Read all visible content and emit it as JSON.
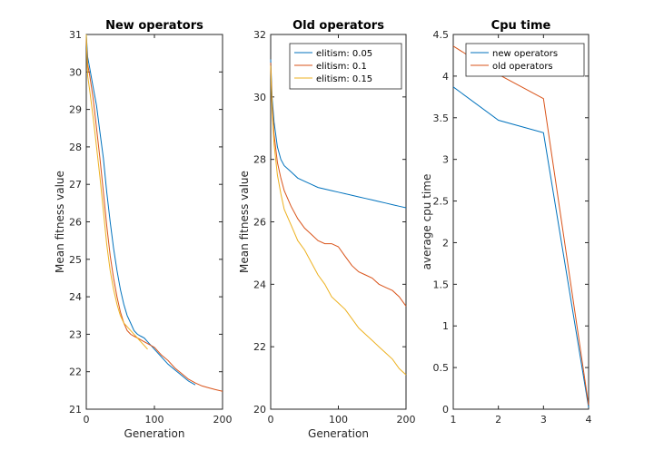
{
  "chart_data": [
    {
      "type": "line",
      "title": "New operators",
      "xlabel": "Generation",
      "ylabel": "Mean fitness value",
      "xlim": [
        0,
        200
      ],
      "ylim": [
        21,
        31
      ],
      "xticks": [
        0,
        100,
        200
      ],
      "yticks": [
        21,
        22,
        23,
        24,
        25,
        26,
        27,
        28,
        29,
        30,
        31
      ],
      "series": [
        {
          "color": "#0072bd",
          "x": [
            0,
            2,
            5,
            10,
            15,
            20,
            25,
            30,
            35,
            40,
            45,
            50,
            55,
            60,
            65,
            70,
            75,
            80,
            85,
            90,
            95,
            100,
            110,
            120,
            130,
            140,
            150,
            160
          ],
          "y": [
            31,
            30.4,
            30.1,
            29.6,
            29.1,
            28.4,
            27.7,
            26.8,
            26,
            25.3,
            24.7,
            24.2,
            23.8,
            23.5,
            23.3,
            23.1,
            23,
            22.95,
            22.9,
            22.8,
            22.7,
            22.6,
            22.4,
            22.2,
            22.05,
            21.9,
            21.75,
            21.65
          ]
        },
        {
          "color": "#d95319",
          "x": [
            0,
            2,
            5,
            10,
            15,
            20,
            25,
            30,
            35,
            40,
            45,
            50,
            55,
            60,
            65,
            70,
            75,
            80,
            85,
            90,
            95,
            100,
            110,
            120,
            130,
            140,
            150,
            160,
            170,
            180,
            190,
            200
          ],
          "y": [
            30.9,
            30.2,
            29.9,
            29.3,
            28.5,
            27.7,
            26.8,
            25.9,
            25.1,
            24.5,
            24,
            23.6,
            23.3,
            23.1,
            23,
            22.95,
            22.9,
            22.85,
            22.8,
            22.75,
            22.7,
            22.65,
            22.45,
            22.3,
            22.1,
            21.95,
            21.8,
            21.7,
            21.62,
            21.57,
            21.52,
            21.48
          ]
        },
        {
          "color": "#edb120",
          "x": [
            0,
            2,
            5,
            10,
            15,
            20,
            25,
            30,
            35,
            40,
            45,
            50,
            55,
            60,
            65,
            70,
            75,
            80,
            85,
            90
          ],
          "y": [
            31,
            29.9,
            29.5,
            28.8,
            28,
            27.2,
            26.3,
            25.4,
            24.7,
            24.2,
            23.8,
            23.5,
            23.3,
            23.2,
            23.1,
            23,
            22.9,
            22.8,
            22.7,
            22.6
          ]
        }
      ]
    },
    {
      "type": "line",
      "title": "Old operators",
      "xlabel": "Generation",
      "ylabel": "Mean fitness value",
      "xlim": [
        0,
        200
      ],
      "ylim": [
        20,
        32
      ],
      "xticks": [
        0,
        100,
        200
      ],
      "yticks": [
        20,
        22,
        24,
        26,
        28,
        30,
        32
      ],
      "legend": "top-right",
      "series": [
        {
          "name": "elitism: 0.05",
          "color": "#0072bd",
          "x": [
            0,
            2,
            5,
            10,
            15,
            20,
            30,
            40,
            50,
            60,
            70,
            80,
            90,
            100,
            110,
            120,
            130,
            140,
            150,
            160,
            170,
            180,
            190,
            200
          ],
          "y": [
            31.2,
            30,
            29.2,
            28.4,
            28,
            27.8,
            27.6,
            27.4,
            27.3,
            27.2,
            27.1,
            27.05,
            27,
            26.95,
            26.9,
            26.85,
            26.8,
            26.75,
            26.7,
            26.65,
            26.6,
            26.55,
            26.5,
            26.45
          ]
        },
        {
          "name": "elitism: 0.1",
          "color": "#d95319",
          "x": [
            0,
            2,
            5,
            10,
            15,
            20,
            30,
            40,
            50,
            60,
            70,
            80,
            90,
            100,
            110,
            120,
            130,
            140,
            150,
            160,
            170,
            180,
            190,
            200
          ],
          "y": [
            31.1,
            29.8,
            28.8,
            27.9,
            27.4,
            27,
            26.5,
            26.1,
            25.8,
            25.6,
            25.4,
            25.3,
            25.3,
            25.2,
            24.9,
            24.6,
            24.4,
            24.3,
            24.2,
            24,
            23.9,
            23.8,
            23.6,
            23.3
          ]
        },
        {
          "name": "elitism: 0.15",
          "color": "#edb120",
          "x": [
            0,
            2,
            5,
            10,
            15,
            20,
            30,
            40,
            50,
            60,
            70,
            80,
            90,
            100,
            110,
            120,
            130,
            140,
            150,
            160,
            170,
            180,
            190,
            200
          ],
          "y": [
            31,
            29.6,
            28.5,
            27.5,
            26.9,
            26.4,
            25.9,
            25.4,
            25.1,
            24.7,
            24.3,
            24,
            23.6,
            23.4,
            23.2,
            22.9,
            22.6,
            22.4,
            22.2,
            22,
            21.8,
            21.6,
            21.3,
            21.1
          ]
        }
      ]
    },
    {
      "type": "line",
      "title": "Cpu time",
      "xlabel": "",
      "ylabel": "average cpu time",
      "xlim": [
        1,
        4
      ],
      "ylim": [
        0,
        4.5
      ],
      "xticks": [
        1,
        2,
        3,
        4
      ],
      "yticks": [
        0,
        0.5,
        1,
        1.5,
        2,
        2.5,
        3,
        3.5,
        4,
        4.5
      ],
      "legend": "top-right",
      "series": [
        {
          "name": "new operators",
          "color": "#0072bd",
          "x": [
            1,
            2,
            3,
            4
          ],
          "y": [
            3.87,
            3.47,
            3.32,
            0.02
          ]
        },
        {
          "name": "old operators",
          "color": "#d95319",
          "x": [
            1,
            2,
            3,
            4
          ],
          "y": [
            4.36,
            4.02,
            3.73,
            0.05
          ]
        }
      ]
    }
  ]
}
